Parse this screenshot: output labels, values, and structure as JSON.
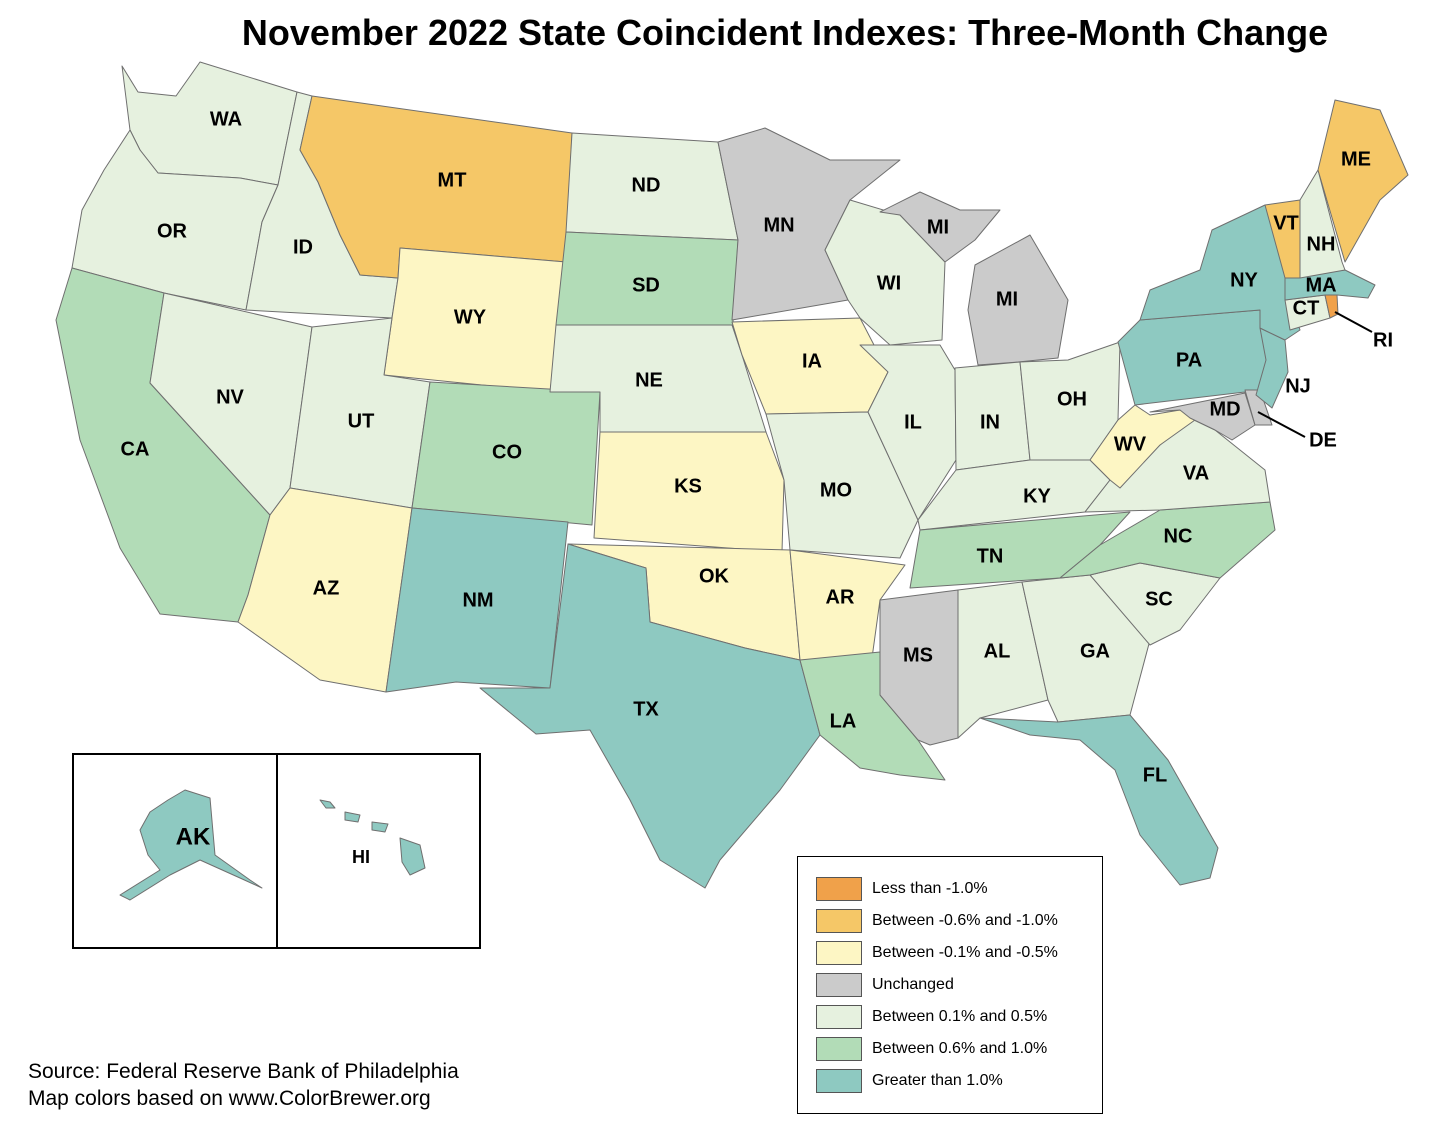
{
  "title": "November 2022 State Coincident Indexes: Three-Month Change",
  "colors": {
    "lt_neg1": "#f0a14a",
    "neg06_neg10": "#f5c767",
    "neg01_neg05": "#fdf6c4",
    "unchanged": "#cbcbcb",
    "pos01_05": "#e6f1df",
    "pos06_10": "#b2dcb7",
    "gt1": "#8ec9c1"
  },
  "legend": [
    {
      "label": "Less than -1.0%",
      "category": "lt_neg1"
    },
    {
      "label": "Between -0.6% and -1.0%",
      "category": "neg06_neg10"
    },
    {
      "label": "Between -0.1% and -0.5%",
      "category": "neg01_neg05"
    },
    {
      "label": "Unchanged",
      "category": "unchanged"
    },
    {
      "label": "Between 0.1% and 0.5%",
      "category": "pos01_05"
    },
    {
      "label": "Between 0.6% and 1.0%",
      "category": "pos06_10"
    },
    {
      "label": "Greater than 1.0%",
      "category": "gt1"
    }
  ],
  "states": {
    "WA": "pos01_05",
    "OR": "pos01_05",
    "CA": "pos06_10",
    "ID": "pos01_05",
    "NV": "pos01_05",
    "MT": "neg06_neg10",
    "WY": "neg01_neg05",
    "UT": "pos01_05",
    "AZ": "neg01_neg05",
    "CO": "pos06_10",
    "NM": "gt1",
    "ND": "pos01_05",
    "SD": "pos06_10",
    "NE": "pos01_05",
    "KS": "neg01_neg05",
    "OK": "neg01_neg05",
    "TX": "gt1",
    "MN": "unchanged",
    "IA": "neg01_neg05",
    "MO": "pos01_05",
    "AR": "neg01_neg05",
    "LA": "pos06_10",
    "WI": "pos01_05",
    "MI": "unchanged",
    "IL": "pos01_05",
    "IN": "pos01_05",
    "OH": "pos01_05",
    "KY": "pos01_05",
    "TN": "pos06_10",
    "MS": "unchanged",
    "AL": "pos01_05",
    "GA": "pos01_05",
    "FL": "gt1",
    "SC": "pos01_05",
    "NC": "pos06_10",
    "VA": "pos01_05",
    "WV": "neg01_neg05",
    "MD": "unchanged",
    "DE": "unchanged",
    "PA": "gt1",
    "NJ": "gt1",
    "NY": "gt1",
    "CT": "pos01_05",
    "RI": "lt_neg1",
    "MA": "gt1",
    "VT": "neg06_neg10",
    "NH": "pos01_05",
    "ME": "neg06_neg10",
    "AK": "gt1",
    "HI": "gt1"
  },
  "source": {
    "line1": "Source: Federal Reserve Bank of Philadelphia",
    "line2": "Map colors based on www.ColorBrewer.org"
  }
}
